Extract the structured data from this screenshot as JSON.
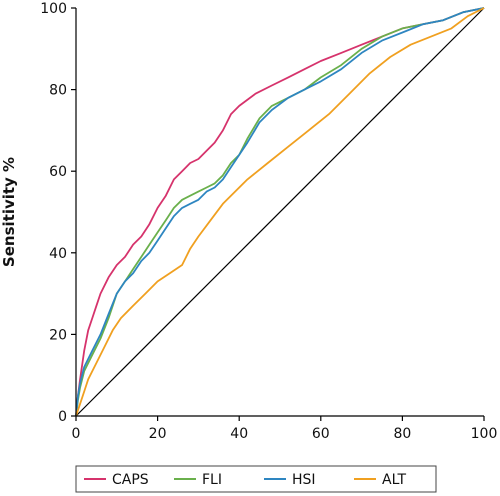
{
  "chart_data": {
    "type": "line",
    "title": "",
    "xlabel": "",
    "ylabel": "Sensitivity %",
    "xlim": [
      0,
      100
    ],
    "ylim": [
      0,
      100
    ],
    "x_ticks": [
      "0",
      "20",
      "40",
      "60",
      "80",
      "100"
    ],
    "y_ticks": [
      "0",
      "20",
      "40",
      "60",
      "80",
      "100"
    ],
    "grid": false,
    "legend_position": "bottom",
    "reference_line": {
      "x": [
        0,
        100
      ],
      "y": [
        0,
        100
      ],
      "color": "#000000"
    },
    "series": [
      {
        "name": "CAPS",
        "color": "#d6336c",
        "x": [
          0,
          0.5,
          1,
          2,
          3,
          4,
          5,
          6,
          8,
          10,
          12,
          14,
          16,
          18,
          20,
          22,
          24,
          26,
          28,
          30,
          32,
          34,
          36,
          38,
          40,
          44,
          48,
          52,
          56,
          60,
          65,
          70,
          75,
          80,
          85,
          90,
          95,
          100
        ],
        "y": [
          0,
          5,
          9,
          16,
          21,
          24,
          27,
          30,
          34,
          37,
          39,
          42,
          44,
          47,
          51,
          54,
          58,
          60,
          62,
          63,
          65,
          67,
          70,
          74,
          76,
          79,
          81,
          83,
          85,
          87,
          89,
          91,
          93,
          95,
          96,
          97,
          99,
          100
        ]
      },
      {
        "name": "FLI",
        "color": "#6ab04c",
        "x": [
          0,
          0.5,
          1,
          2,
          4,
          6,
          8,
          10,
          12,
          14,
          16,
          18,
          20,
          22,
          24,
          26,
          28,
          30,
          32,
          34,
          36,
          38,
          40,
          42,
          45,
          48,
          52,
          56,
          60,
          65,
          70,
          75,
          80,
          85,
          90,
          95,
          100
        ],
        "y": [
          0,
          4,
          7,
          11,
          15,
          19,
          24,
          30,
          33,
          36,
          39,
          42,
          45,
          48,
          51,
          53,
          54,
          55,
          56,
          57,
          59,
          62,
          64,
          68,
          73,
          76,
          78,
          80,
          83,
          86,
          90,
          93,
          95,
          96,
          97,
          99,
          100
        ]
      },
      {
        "name": "HSI",
        "color": "#2e86c1",
        "x": [
          0,
          0.5,
          1,
          2,
          4,
          6,
          8,
          10,
          12,
          14,
          16,
          18,
          20,
          22,
          24,
          26,
          28,
          30,
          32,
          34,
          36,
          38,
          40,
          42,
          45,
          48,
          52,
          56,
          60,
          65,
          70,
          75,
          80,
          85,
          90,
          95,
          100
        ],
        "y": [
          0,
          5,
          8,
          12,
          16,
          20,
          25,
          30,
          33,
          35,
          38,
          40,
          43,
          46,
          49,
          51,
          52,
          53,
          55,
          56,
          58,
          61,
          64,
          67,
          72,
          75,
          78,
          80,
          82,
          85,
          89,
          92,
          94,
          96,
          97,
          99,
          100
        ]
      },
      {
        "name": "ALT",
        "color": "#f0a020",
        "x": [
          0,
          1,
          2,
          3,
          5,
          7,
          9,
          11,
          14,
          17,
          20,
          23,
          26,
          28,
          30,
          33,
          36,
          39,
          42,
          47,
          52,
          57,
          62,
          67,
          72,
          77,
          82,
          87,
          92,
          96,
          100
        ],
        "y": [
          0,
          3,
          6,
          9,
          13,
          17,
          21,
          24,
          27,
          30,
          33,
          35,
          37,
          41,
          44,
          48,
          52,
          55,
          58,
          62,
          66,
          70,
          74,
          79,
          84,
          88,
          91,
          93,
          95,
          98,
          100
        ]
      }
    ]
  }
}
